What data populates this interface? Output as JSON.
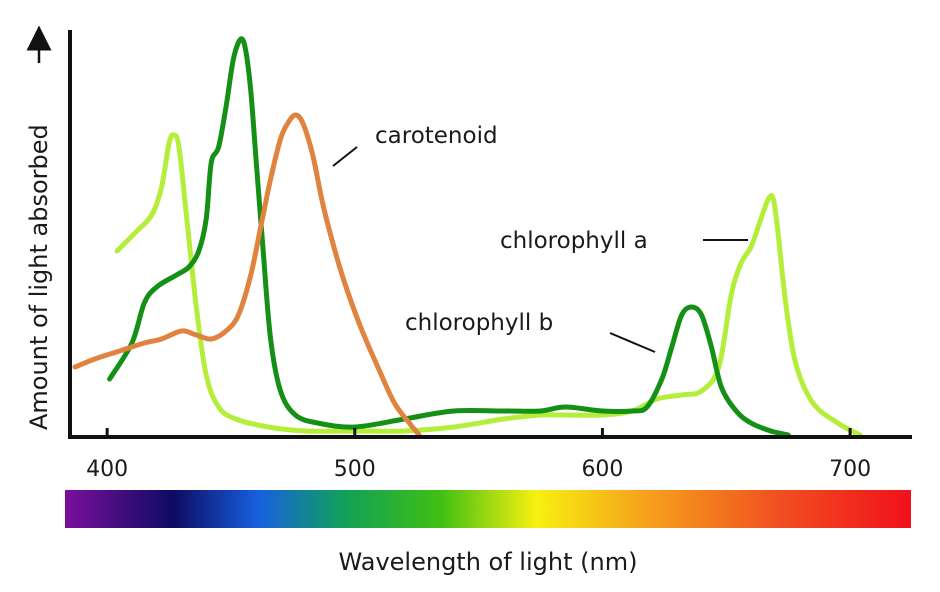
{
  "chart_data": {
    "type": "line",
    "title": "",
    "xlabel": "Wavelength of light (nm)",
    "ylabel": "Amount of light absorbed",
    "xlim": [
      385,
      725
    ],
    "ylim": [
      0,
      1
    ],
    "x_ticks": [
      400,
      500,
      600,
      700
    ],
    "y_ticks": [],
    "grid": false,
    "series": [
      {
        "name": "chlorophyll a",
        "color": "#b5ee3a",
        "points": [
          [
            404,
            0.46
          ],
          [
            412,
            0.51
          ],
          [
            418,
            0.55
          ],
          [
            422,
            0.62
          ],
          [
            425,
            0.73
          ],
          [
            427,
            0.75
          ],
          [
            429,
            0.72
          ],
          [
            432,
            0.55
          ],
          [
            436,
            0.32
          ],
          [
            440,
            0.15
          ],
          [
            445,
            0.07
          ],
          [
            452,
            0.04
          ],
          [
            465,
            0.02
          ],
          [
            480,
            0.01
          ],
          [
            500,
            0.01
          ],
          [
            520,
            0.01
          ],
          [
            540,
            0.02
          ],
          [
            560,
            0.04
          ],
          [
            575,
            0.05
          ],
          [
            585,
            0.05
          ],
          [
            600,
            0.05
          ],
          [
            612,
            0.06
          ],
          [
            622,
            0.09
          ],
          [
            632,
            0.1
          ],
          [
            640,
            0.11
          ],
          [
            647,
            0.17
          ],
          [
            652,
            0.35
          ],
          [
            656,
            0.43
          ],
          [
            660,
            0.47
          ],
          [
            664,
            0.54
          ],
          [
            667,
            0.59
          ],
          [
            669,
            0.59
          ],
          [
            671,
            0.5
          ],
          [
            674,
            0.33
          ],
          [
            678,
            0.18
          ],
          [
            685,
            0.08
          ],
          [
            695,
            0.03
          ],
          [
            704,
            0.0
          ]
        ]
      },
      {
        "name": "chlorophyll b",
        "color": "#159016",
        "points": [
          [
            401,
            0.14
          ],
          [
            410,
            0.23
          ],
          [
            415,
            0.33
          ],
          [
            420,
            0.37
          ],
          [
            428,
            0.4
          ],
          [
            433,
            0.42
          ],
          [
            437,
            0.46
          ],
          [
            440,
            0.54
          ],
          [
            442,
            0.68
          ],
          [
            445,
            0.72
          ],
          [
            448,
            0.82
          ],
          [
            451,
            0.94
          ],
          [
            454,
            0.99
          ],
          [
            456,
            0.96
          ],
          [
            458,
            0.86
          ],
          [
            460,
            0.7
          ],
          [
            463,
            0.46
          ],
          [
            466,
            0.24
          ],
          [
            470,
            0.11
          ],
          [
            476,
            0.05
          ],
          [
            485,
            0.03
          ],
          [
            500,
            0.02
          ],
          [
            520,
            0.04
          ],
          [
            540,
            0.06
          ],
          [
            560,
            0.06
          ],
          [
            575,
            0.06
          ],
          [
            585,
            0.07
          ],
          [
            600,
            0.06
          ],
          [
            612,
            0.06
          ],
          [
            618,
            0.07
          ],
          [
            624,
            0.14
          ],
          [
            628,
            0.22
          ],
          [
            632,
            0.3
          ],
          [
            636,
            0.32
          ],
          [
            640,
            0.3
          ],
          [
            644,
            0.22
          ],
          [
            648,
            0.12
          ],
          [
            654,
            0.06
          ],
          [
            660,
            0.03
          ],
          [
            668,
            0.01
          ],
          [
            675,
            0.0
          ]
        ]
      },
      {
        "name": "carotenoid",
        "color": "#e0833f",
        "points": [
          [
            387,
            0.17
          ],
          [
            395,
            0.19
          ],
          [
            405,
            0.21
          ],
          [
            415,
            0.23
          ],
          [
            422,
            0.24
          ],
          [
            430,
            0.26
          ],
          [
            436,
            0.25
          ],
          [
            442,
            0.24
          ],
          [
            448,
            0.26
          ],
          [
            453,
            0.3
          ],
          [
            458,
            0.4
          ],
          [
            462,
            0.52
          ],
          [
            466,
            0.64
          ],
          [
            470,
            0.74
          ],
          [
            473,
            0.78
          ],
          [
            476,
            0.8
          ],
          [
            479,
            0.78
          ],
          [
            483,
            0.7
          ],
          [
            487,
            0.58
          ],
          [
            492,
            0.46
          ],
          [
            497,
            0.36
          ],
          [
            503,
            0.26
          ],
          [
            510,
            0.16
          ],
          [
            516,
            0.08
          ],
          [
            522,
            0.03
          ],
          [
            526,
            0.0
          ]
        ]
      }
    ],
    "annotations": [
      {
        "text": "carotenoid",
        "series": "carotenoid"
      },
      {
        "text": "chlorophyll a",
        "series": "chlorophyll a"
      },
      {
        "text": "chlorophyll b",
        "series": "chlorophyll b"
      }
    ],
    "spectrum_bar": {
      "range_nm": [
        380,
        730
      ],
      "stops": [
        {
          "nm": 380,
          "color": "#7a0f9c"
        },
        {
          "nm": 425,
          "color": "#0e0b63"
        },
        {
          "nm": 460,
          "color": "#1760e0"
        },
        {
          "nm": 495,
          "color": "#11a05a"
        },
        {
          "nm": 535,
          "color": "#3fbf13"
        },
        {
          "nm": 575,
          "color": "#f7f010"
        },
        {
          "nm": 620,
          "color": "#f6a21c"
        },
        {
          "nm": 675,
          "color": "#f05020"
        },
        {
          "nm": 730,
          "color": "#f2101c"
        }
      ]
    }
  }
}
